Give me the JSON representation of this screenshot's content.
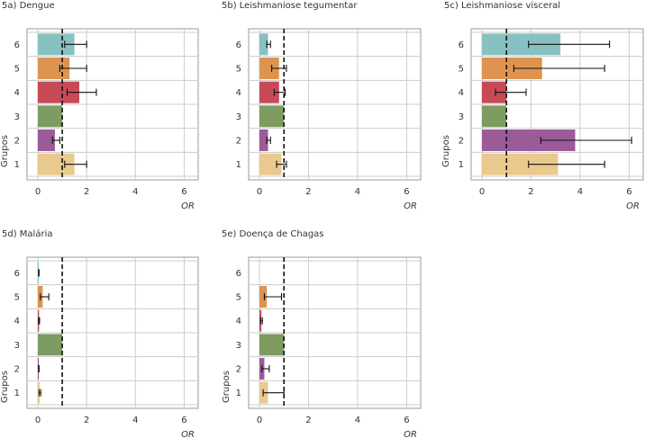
{
  "colors": {
    "grid": "#cccccc",
    "frame": "#999999",
    "groups": {
      "1": "#e9c98d",
      "2": "#9b5b98",
      "3": "#7e9c62",
      "4": "#c84a55",
      "5": "#dd9450",
      "6": "#88c1c2"
    }
  },
  "chart_data": [
    {
      "id": "a",
      "type": "bar",
      "orientation": "horizontal",
      "title": "5a) Dengue",
      "xlabel": "OR",
      "ylabel": "Grupos",
      "xlim": [
        0,
        6.5
      ],
      "xticks": [
        0,
        2,
        4,
        6
      ],
      "reference_line": 1,
      "categories": [
        "1",
        "2",
        "3",
        "4",
        "5",
        "6"
      ],
      "values": [
        1.5,
        0.7,
        1.0,
        1.7,
        1.3,
        1.5
      ],
      "ci_low": [
        1.1,
        0.6,
        1.0,
        1.2,
        0.9,
        1.1
      ],
      "ci_high": [
        2.0,
        0.9,
        1.0,
        2.4,
        2.0,
        2.0
      ],
      "grid": true
    },
    {
      "id": "b",
      "type": "bar",
      "orientation": "horizontal",
      "title": "5b) Leishmaniose tegumentar",
      "xlabel": "OR",
      "ylabel": "",
      "xlim": [
        0,
        6.5
      ],
      "xticks": [
        0,
        2,
        4,
        6
      ],
      "reference_line": 1,
      "categories": [
        "1",
        "2",
        "3",
        "4",
        "5",
        "6"
      ],
      "values": [
        0.9,
        0.35,
        1.0,
        0.8,
        0.8,
        0.35
      ],
      "ci_low": [
        0.7,
        0.3,
        1.0,
        0.6,
        0.5,
        0.3
      ],
      "ci_high": [
        1.1,
        0.45,
        1.0,
        1.05,
        1.1,
        0.45
      ],
      "grid": true
    },
    {
      "id": "c",
      "type": "bar",
      "orientation": "horizontal",
      "title": "5c) Leishmaniose visceral",
      "xlabel": "OR",
      "ylabel": "Grupos",
      "xlim": [
        0,
        6.5
      ],
      "xticks": [
        0,
        2,
        4,
        6
      ],
      "reference_line": 1,
      "categories": [
        "1",
        "2",
        "3",
        "4",
        "5",
        "6"
      ],
      "values": [
        3.1,
        3.8,
        1.0,
        1.0,
        2.45,
        3.2
      ],
      "ci_low": [
        1.9,
        2.4,
        1.0,
        0.55,
        1.3,
        1.9
      ],
      "ci_high": [
        5.0,
        6.1,
        1.0,
        1.8,
        5.0,
        5.2
      ],
      "grid": true
    },
    {
      "id": "d",
      "type": "bar",
      "orientation": "horizontal",
      "title": "5d) Malária",
      "xlabel": "OR",
      "ylabel": "Grupos",
      "xlim": [
        0,
        6.5
      ],
      "xticks": [
        0,
        2,
        4,
        6
      ],
      "reference_line": 1,
      "categories": [
        "1",
        "2",
        "3",
        "4",
        "5",
        "6"
      ],
      "values": [
        0.08,
        0.04,
        1.0,
        0.05,
        0.2,
        0.04
      ],
      "ci_low": [
        0.05,
        0.03,
        1.0,
        0.03,
        0.1,
        0.03
      ],
      "ci_high": [
        0.12,
        0.05,
        1.0,
        0.07,
        0.45,
        0.05
      ],
      "grid": true
    },
    {
      "id": "e",
      "type": "bar",
      "orientation": "horizontal",
      "title": "5e) Doença de Chagas",
      "xlabel": "OR",
      "ylabel": "Grupos",
      "xlim": [
        0,
        6.5
      ],
      "xticks": [
        0,
        2,
        4,
        6
      ],
      "reference_line": 1,
      "categories": [
        "1",
        "2",
        "3",
        "4",
        "5",
        "6"
      ],
      "values": [
        0.35,
        0.2,
        1.0,
        0.08,
        0.3,
        0.0
      ],
      "ci_low": [
        0.15,
        0.1,
        1.0,
        0.05,
        0.2,
        0.0
      ],
      "ci_high": [
        1.0,
        0.4,
        1.0,
        0.12,
        0.9,
        0.0
      ],
      "grid": true
    }
  ]
}
